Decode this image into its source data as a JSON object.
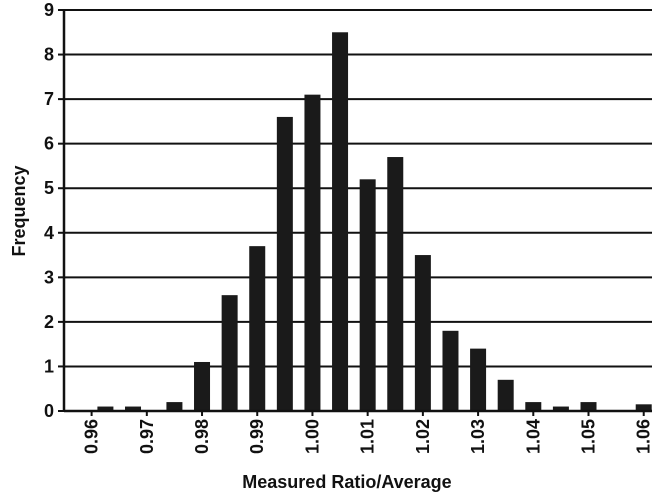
{
  "chart_data": {
    "type": "bar",
    "title": "",
    "xlabel": "Measured Ratio/Average",
    "ylabel": "Frequency",
    "ylim": [
      0,
      9
    ],
    "yticks": [
      "0",
      "1",
      "2",
      "3",
      "4",
      "5",
      "6",
      "7",
      "8",
      "9"
    ],
    "xlim": [
      0.955,
      1.0615
    ],
    "xticks": [
      "0.96",
      "0.97",
      "0.98",
      "0.99",
      "1.00",
      "1.01",
      "1.02",
      "1.03",
      "1.04",
      "1.05",
      "1.06"
    ],
    "grid": "horizontal",
    "bar_color": "#1a1a1a",
    "x": [
      0.9625,
      0.9675,
      0.975,
      0.98,
      0.985,
      0.99,
      0.995,
      1.0,
      1.005,
      1.01,
      1.015,
      1.02,
      1.025,
      1.03,
      1.035,
      1.04,
      1.045,
      1.05,
      1.055,
      1.06
    ],
    "values": [
      0.1,
      0.1,
      0.2,
      1.1,
      2.6,
      3.7,
      6.6,
      7.1,
      8.5,
      5.2,
      5.7,
      3.5,
      1.8,
      1.4,
      0.7,
      0.2,
      0.1,
      0.2,
      0.0,
      0.15
    ]
  }
}
